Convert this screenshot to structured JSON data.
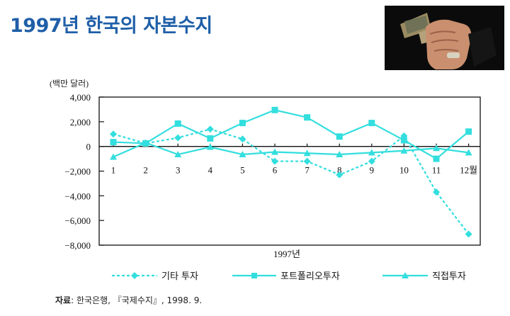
{
  "slide": {
    "title": "1997년 한국의 자본수지",
    "source_label": "자료",
    "source_text": ": 한국은행, 『국제수지』, 1998. 9."
  },
  "photo": {
    "icon": "fist-holding-money-photo"
  },
  "colors": {
    "series": "#33dede",
    "axis": "#111111",
    "title": "#1f5fa8"
  },
  "chart_data": {
    "type": "line",
    "unit_label": "(백만 달러)",
    "xlabel": "1997년",
    "categories": [
      "1",
      "2",
      "3",
      "4",
      "5",
      "6",
      "7",
      "8",
      "9",
      "10",
      "11",
      "12월"
    ],
    "ylim": [
      -8000,
      4000
    ],
    "yticks": [
      4000,
      2000,
      0,
      -2000,
      -4000,
      -6000,
      -8000
    ],
    "ytick_labels": [
      "4,000",
      "2,000",
      "0",
      "−2,000",
      "−4,000",
      "−6,000",
      "−8,000"
    ],
    "grid": false,
    "legend_position": "bottom",
    "series": [
      {
        "name": "기타 투자",
        "marker": "diamond",
        "dashed": true,
        "values": [
          1000,
          250,
          700,
          1400,
          600,
          -1200,
          -1200,
          -2300,
          -1200,
          850,
          -3700,
          -7100
        ]
      },
      {
        "name": "포트폴리오투자",
        "marker": "square",
        "dashed": false,
        "values": [
          350,
          250,
          1850,
          650,
          1900,
          2950,
          2350,
          800,
          1900,
          500,
          -1000,
          1200
        ]
      },
      {
        "name": "직접투자",
        "marker": "triangle",
        "dashed": false,
        "values": [
          -850,
          300,
          -650,
          -50,
          -650,
          -450,
          -550,
          -650,
          -500,
          -350,
          -150,
          -500
        ]
      }
    ]
  }
}
